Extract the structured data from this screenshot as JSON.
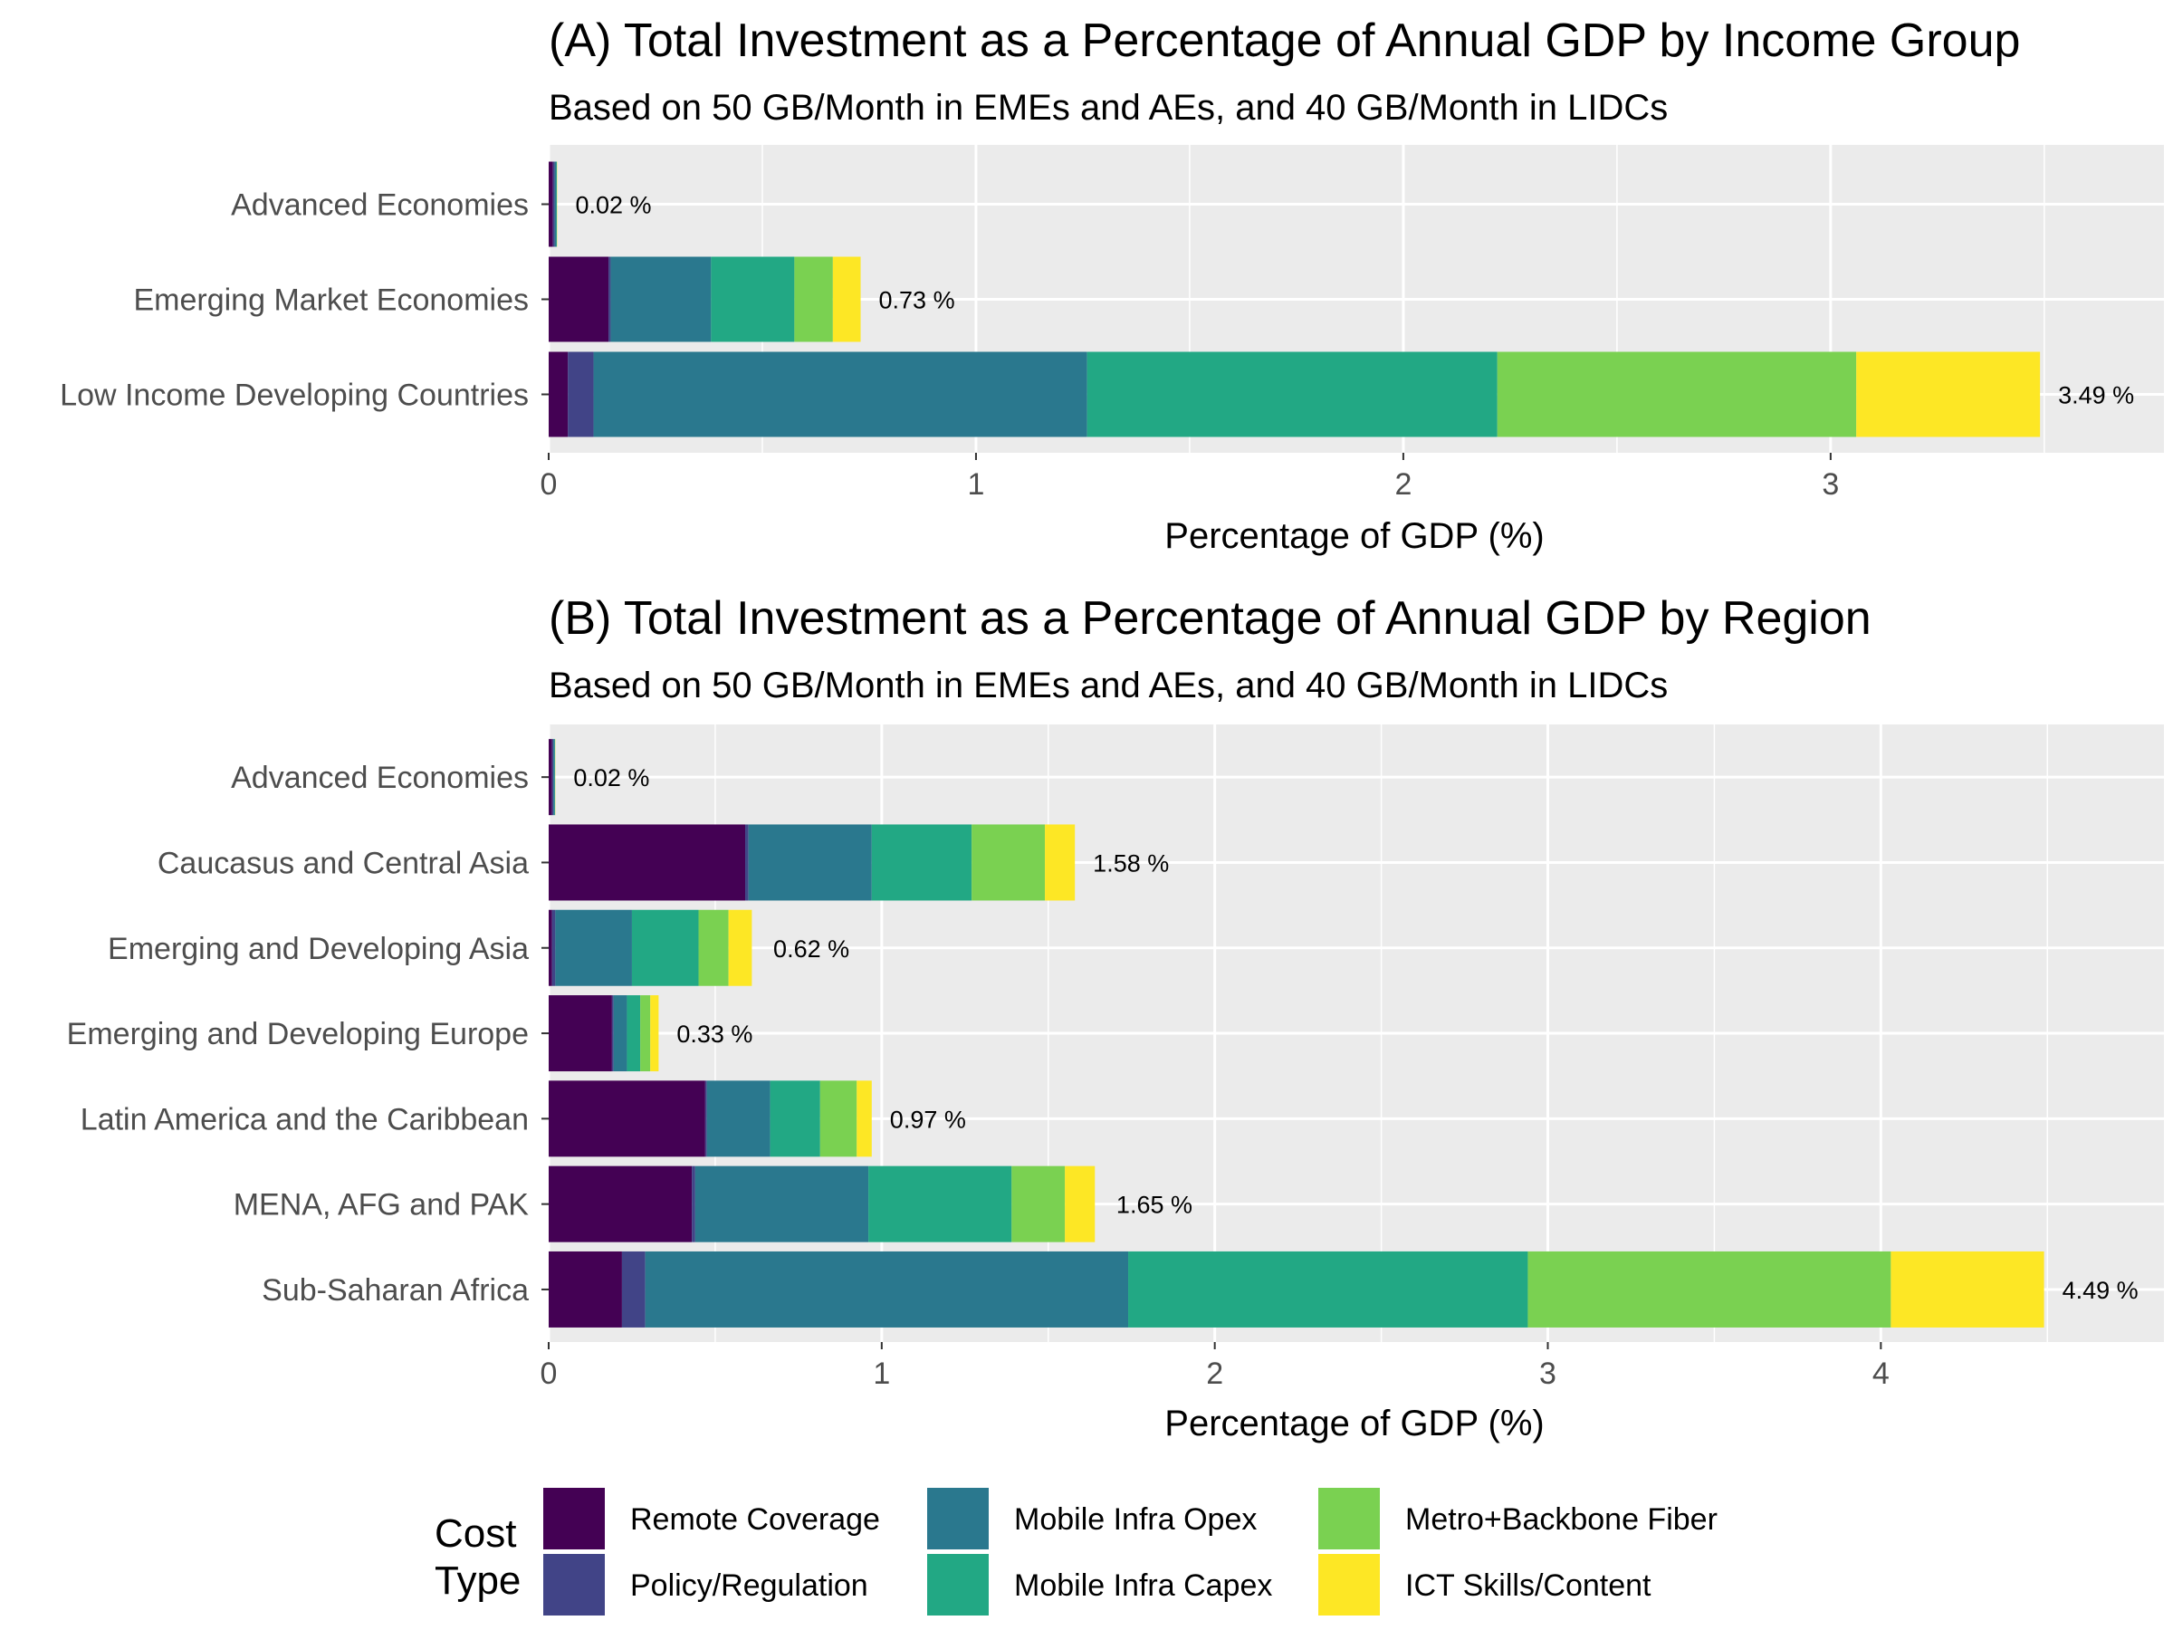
{
  "chart_data": [
    {
      "type": "bar",
      "orientation": "horizontal",
      "stacked": true,
      "title": "(A) Total Investment as a Percentage of Annual GDP by Income Group",
      "subtitle": "Based on 50 GB/Month in EMEs and AEs, and 40 GB/Month in LIDCs",
      "xlabel": "Percentage of GDP (%)",
      "ylabel": "",
      "xlim": [
        0,
        3.78
      ],
      "xticks": [
        0,
        1,
        2,
        3
      ],
      "grid": true,
      "categories": [
        "Advanced Economies",
        "Emerging Market Economies",
        "Low Income Developing Countries"
      ],
      "series": [
        {
          "name": "Remote Coverage",
          "values": [
            0.01,
            0.14,
            0.045
          ]
        },
        {
          "name": "Policy/Regulation",
          "values": [
            0.004,
            0.005,
            0.06
          ]
        },
        {
          "name": "Mobile Infra Opex",
          "values": [
            0.004,
            0.235,
            1.155
          ]
        },
        {
          "name": "Mobile Infra Capex",
          "values": [
            0.001,
            0.195,
            0.96
          ]
        },
        {
          "name": "Metro+Backbone Fiber",
          "values": [
            0.0005,
            0.09,
            0.84
          ]
        },
        {
          "name": "ICT Skills/Content",
          "values": [
            0.0005,
            0.065,
            0.43
          ]
        }
      ],
      "totals": [
        0.02,
        0.73,
        3.49
      ],
      "total_labels": [
        "0.02 %",
        "0.73 %",
        "3.49 %"
      ]
    },
    {
      "type": "bar",
      "orientation": "horizontal",
      "stacked": true,
      "title": "(B) Total Investment as a Percentage of Annual GDP by Region",
      "subtitle": "Based on 50 GB/Month in EMEs and AEs, and 40 GB/Month in LIDCs",
      "xlabel": "Percentage of GDP (%)",
      "ylabel": "",
      "xlim": [
        0,
        4.85
      ],
      "xticks": [
        0,
        1,
        2,
        3,
        4
      ],
      "grid": true,
      "categories": [
        "Advanced Economies",
        "Caucasus and Central Asia",
        "Emerging and Developing Asia",
        "Emerging and Developing Europe",
        "Latin America and the Caribbean",
        "MENA, AFG and PAK",
        "Sub-Saharan Africa"
      ],
      "series": [
        {
          "name": "Remote Coverage",
          "values": [
            0.01,
            0.59,
            0.01,
            0.19,
            0.47,
            0.43,
            0.22
          ]
        },
        {
          "name": "Policy/Regulation",
          "values": [
            0.004,
            0.01,
            0.01,
            0.005,
            0.005,
            0.01,
            0.07
          ]
        },
        {
          "name": "Mobile Infra Opex",
          "values": [
            0.004,
            0.37,
            0.23,
            0.04,
            0.19,
            0.52,
            1.45
          ]
        },
        {
          "name": "Mobile Infra Capex",
          "values": [
            0.001,
            0.3,
            0.2,
            0.04,
            0.15,
            0.43,
            1.2
          ]
        },
        {
          "name": "Metro+Backbone Fiber",
          "values": [
            0.0005,
            0.22,
            0.09,
            0.03,
            0.11,
            0.16,
            1.09
          ]
        },
        {
          "name": "ICT Skills/Content",
          "values": [
            0.0005,
            0.09,
            0.07,
            0.025,
            0.045,
            0.09,
            0.46
          ]
        }
      ],
      "totals": [
        0.02,
        1.58,
        0.62,
        0.33,
        0.97,
        1.65,
        4.49
      ],
      "total_labels": [
        "0.02 %",
        "1.58 %",
        "0.62 %",
        "0.33 %",
        "0.97 %",
        "1.65 %",
        "4.49 %"
      ]
    }
  ],
  "legend": {
    "title_line1": "Cost",
    "title_line2": "Type",
    "placement": "bottom",
    "items": [
      {
        "label": "Remote Coverage",
        "color": "#440154"
      },
      {
        "label": "Policy/Regulation",
        "color": "#414487"
      },
      {
        "label": "Mobile Infra Opex",
        "color": "#2A788E"
      },
      {
        "label": "Mobile Infra Capex",
        "color": "#22A884"
      },
      {
        "label": "Metro+Backbone Fiber",
        "color": "#7AD151"
      },
      {
        "label": "ICT Skills/Content",
        "color": "#FDE725"
      }
    ]
  },
  "colors": {
    "panel_background": "#EBEBEB",
    "grid": "#FFFFFF"
  }
}
